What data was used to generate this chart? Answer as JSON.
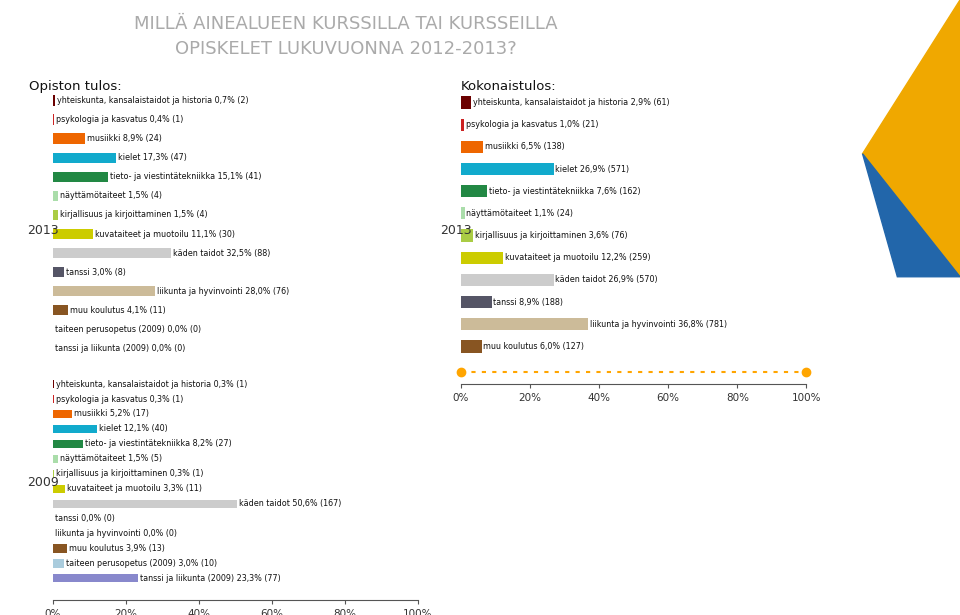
{
  "title_line1": "MILLÄ AINEALUEEN KURSSILLA TAI KURSSEILLA",
  "title_line2": "OPISKELET LUKUVUONNA 2012-2013?",
  "title_color": "#aaaaaa",
  "bg_color": "#ffffff",
  "left_label": "Opiston tulos:",
  "right_label": "Kokonaistulos:",
  "categories": [
    "yhteiskunta, kansalaistaidot ja historia",
    "psykologia ja kasvatus",
    "musiikki",
    "kielet",
    "tieto- ja viestintätekniikka",
    "näyttämötaiteet",
    "kirjallisuus ja kirjoittaminen",
    "kuvataiteet ja muotoilu",
    "käden taidot",
    "tanssi",
    "liikunta ja hyvinvointi",
    "muu koulutus",
    "taiteen perusopetus (2009)",
    "tanssi ja liikunta (2009)"
  ],
  "colors": [
    "#6b0000",
    "#cc2222",
    "#ee6600",
    "#11aacc",
    "#228844",
    "#aaddaa",
    "#aacc44",
    "#cccc00",
    "#cccccc",
    "#555566",
    "#ccbb99",
    "#885522",
    "#aaccdd",
    "#8888cc"
  ],
  "opisto_2013_pct": [
    0.7,
    0.4,
    8.9,
    17.3,
    15.1,
    1.5,
    1.5,
    11.1,
    32.5,
    3.0,
    28.0,
    4.1,
    0.0,
    0.0
  ],
  "opisto_2013_n": [
    2,
    1,
    24,
    47,
    41,
    4,
    4,
    30,
    88,
    8,
    76,
    11,
    0,
    0
  ],
  "kokonais_2013_pct": [
    2.9,
    1.0,
    6.5,
    26.9,
    7.6,
    1.1,
    3.6,
    12.2,
    26.9,
    8.9,
    36.8,
    6.0
  ],
  "kokonais_2013_n": [
    61,
    21,
    138,
    571,
    162,
    24,
    76,
    259,
    570,
    188,
    781,
    127
  ],
  "opisto_2009_pct": [
    0.3,
    0.3,
    5.2,
    12.1,
    8.2,
    1.5,
    0.3,
    3.3,
    50.6,
    0.0,
    0.0,
    3.9,
    3.0,
    23.3
  ],
  "opisto_2009_n": [
    1,
    1,
    17,
    40,
    27,
    5,
    1,
    11,
    167,
    0,
    0,
    13,
    10,
    77
  ],
  "xmax": 100,
  "xticks": [
    0,
    20,
    40,
    60,
    80,
    100
  ],
  "xtick_labels": [
    "0%",
    "20%",
    "40%",
    "60%",
    "80%",
    "100%"
  ],
  "orange_dot_color": "#FFA500"
}
